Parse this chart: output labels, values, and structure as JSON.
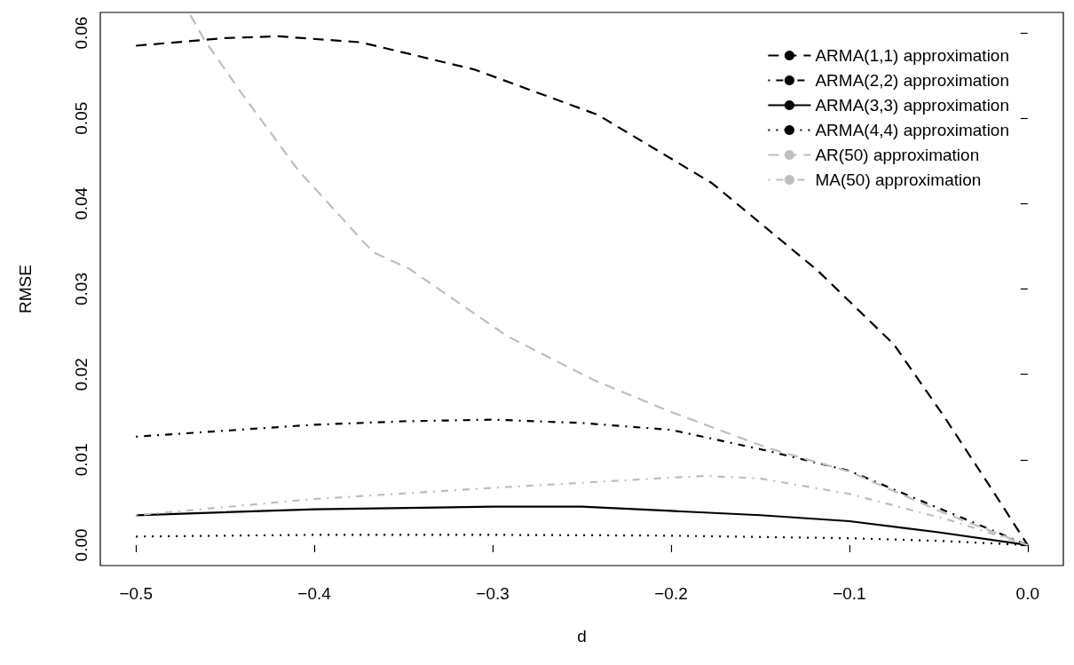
{
  "chart_data": {
    "type": "line",
    "xlabel": "d",
    "ylabel": "RMSE",
    "xlim": [
      -0.52,
      0.02
    ],
    "ylim": [
      -0.0024,
      0.0624
    ],
    "xticks": [
      {
        "value": -0.5,
        "label": "−0.5"
      },
      {
        "value": -0.4,
        "label": "−0.4"
      },
      {
        "value": -0.3,
        "label": "−0.3"
      },
      {
        "value": -0.2,
        "label": "−0.2"
      },
      {
        "value": -0.1,
        "label": "−0.1"
      },
      {
        "value": 0,
        "label": "0.0"
      }
    ],
    "yticks": [
      {
        "value": 0,
        "label": "0.00"
      },
      {
        "value": 0.01,
        "label": "0.01"
      },
      {
        "value": 0.02,
        "label": "0.02"
      },
      {
        "value": 0.03,
        "label": "0.03"
      },
      {
        "value": 0.04,
        "label": "0.04"
      },
      {
        "value": 0.05,
        "label": "0.05"
      },
      {
        "value": 0.06,
        "label": "0.06"
      }
    ],
    "grid": false,
    "legend": "top right",
    "marker": "none",
    "series": [
      {
        "name": "ARMA(1,1) approximation",
        "color": "#000000",
        "line_style": "dashed",
        "x": [
          -0.5,
          -0.45,
          -0.42,
          -0.374,
          -0.31,
          -0.241,
          -0.177,
          -0.118,
          -0.075,
          -0.047,
          -0.02,
          0
        ],
        "values": [
          0.0585,
          0.0594,
          0.0596,
          0.0589,
          0.0557,
          0.0504,
          0.0424,
          0.0322,
          0.0235,
          0.0151,
          0.0065,
          0
        ]
      },
      {
        "name": "ARMA(2,2) approximation",
        "color": "#000000",
        "line_style": "dashdot",
        "x": [
          -0.5,
          -0.4,
          -0.35,
          -0.3,
          -0.25,
          -0.2,
          -0.147,
          -0.1,
          -0.045,
          0
        ],
        "values": [
          0.0127,
          0.0141,
          0.0145,
          0.0147,
          0.0143,
          0.0135,
          0.0111,
          0.0087,
          0.0039,
          0
        ]
      },
      {
        "name": "ARMA(3,3) approximation",
        "color": "#000000",
        "line_style": "solid",
        "x": [
          -0.5,
          -0.4,
          -0.3,
          -0.25,
          -0.2,
          -0.15,
          -0.1,
          -0.05,
          0
        ],
        "values": [
          0.0035,
          0.0042,
          0.0045,
          0.0045,
          0.004,
          0.0035,
          0.0028,
          0.0015,
          0
        ]
      },
      {
        "name": "ARMA(4,4) approximation",
        "color": "#000000",
        "line_style": "dotted",
        "x": [
          -0.5,
          -0.4,
          -0.3,
          -0.2,
          -0.1,
          -0.05,
          0
        ],
        "values": [
          0.001,
          0.0012,
          0.0012,
          0.0011,
          0.0008,
          0.0005,
          0
        ]
      },
      {
        "name": "AR(50) approximation",
        "color": "#bebebe",
        "line_style": "dashed",
        "x": [
          -0.4695,
          -0.462,
          -0.441,
          -0.409,
          -0.367,
          -0.347,
          -0.292,
          -0.243,
          -0.2,
          -0.146,
          -0.1,
          -0.045,
          0
        ],
        "values": [
          0.0621,
          0.0593,
          0.053,
          0.0439,
          0.0343,
          0.0324,
          0.0245,
          0.0193,
          0.0156,
          0.0114,
          0.0086,
          0.0036,
          0
        ]
      },
      {
        "name": "MA(50) approximation",
        "color": "#bebebe",
        "line_style": "dashdot",
        "x": [
          -0.5,
          -0.4,
          -0.3,
          -0.2,
          -0.18,
          -0.15,
          -0.1,
          -0.045,
          0
        ],
        "values": [
          0.0035,
          0.0054,
          0.0067,
          0.0079,
          0.0081,
          0.0078,
          0.006,
          0.003,
          0
        ]
      }
    ]
  }
}
